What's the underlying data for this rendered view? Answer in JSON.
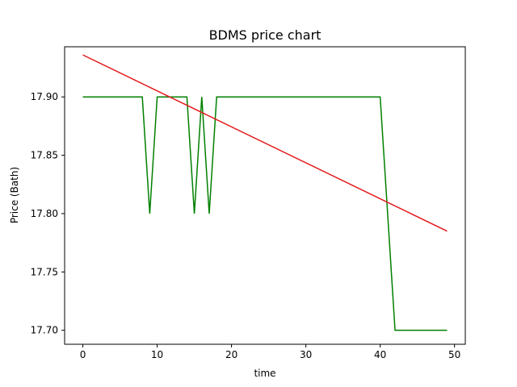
{
  "chart_data": {
    "type": "line",
    "title": "BDMS price chart",
    "xlabel": "time",
    "ylabel": "Price (Bath)",
    "xlim": [
      -2.45,
      51.45
    ],
    "ylim": [
      17.688,
      17.943
    ],
    "x_ticks": [
      0,
      10,
      20,
      30,
      40,
      50
    ],
    "y_ticks": [
      17.7,
      17.75,
      17.8,
      17.85,
      17.9
    ],
    "x_tick_labels": [
      "0",
      "10",
      "20",
      "30",
      "40",
      "50"
    ],
    "y_tick_labels": [
      "17.70",
      "17.75",
      "17.80",
      "17.85",
      "17.90"
    ],
    "grid": false,
    "series": [
      {
        "color": "#008000",
        "x": [
          0,
          1,
          2,
          3,
          4,
          5,
          6,
          7,
          8,
          9,
          10,
          11,
          12,
          13,
          14,
          15,
          16,
          17,
          18,
          19,
          20,
          21,
          22,
          23,
          24,
          25,
          26,
          27,
          28,
          29,
          30,
          31,
          32,
          33,
          34,
          35,
          36,
          37,
          38,
          39,
          40,
          41,
          42,
          43,
          44,
          45,
          46,
          47,
          48,
          49
        ],
        "y": [
          17.9,
          17.9,
          17.9,
          17.9,
          17.9,
          17.9,
          17.9,
          17.9,
          17.9,
          17.8,
          17.9,
          17.9,
          17.9,
          17.9,
          17.9,
          17.8,
          17.9,
          17.8,
          17.9,
          17.9,
          17.9,
          17.9,
          17.9,
          17.9,
          17.9,
          17.9,
          17.9,
          17.9,
          17.9,
          17.9,
          17.9,
          17.9,
          17.9,
          17.9,
          17.9,
          17.9,
          17.9,
          17.9,
          17.9,
          17.9,
          17.9,
          17.8,
          17.7,
          17.7,
          17.7,
          17.7,
          17.7,
          17.7,
          17.7,
          17.7
        ]
      },
      {
        "color": "#e41a1c",
        "x": [
          0,
          49
        ],
        "y": [
          17.936,
          17.785
        ]
      }
    ]
  }
}
